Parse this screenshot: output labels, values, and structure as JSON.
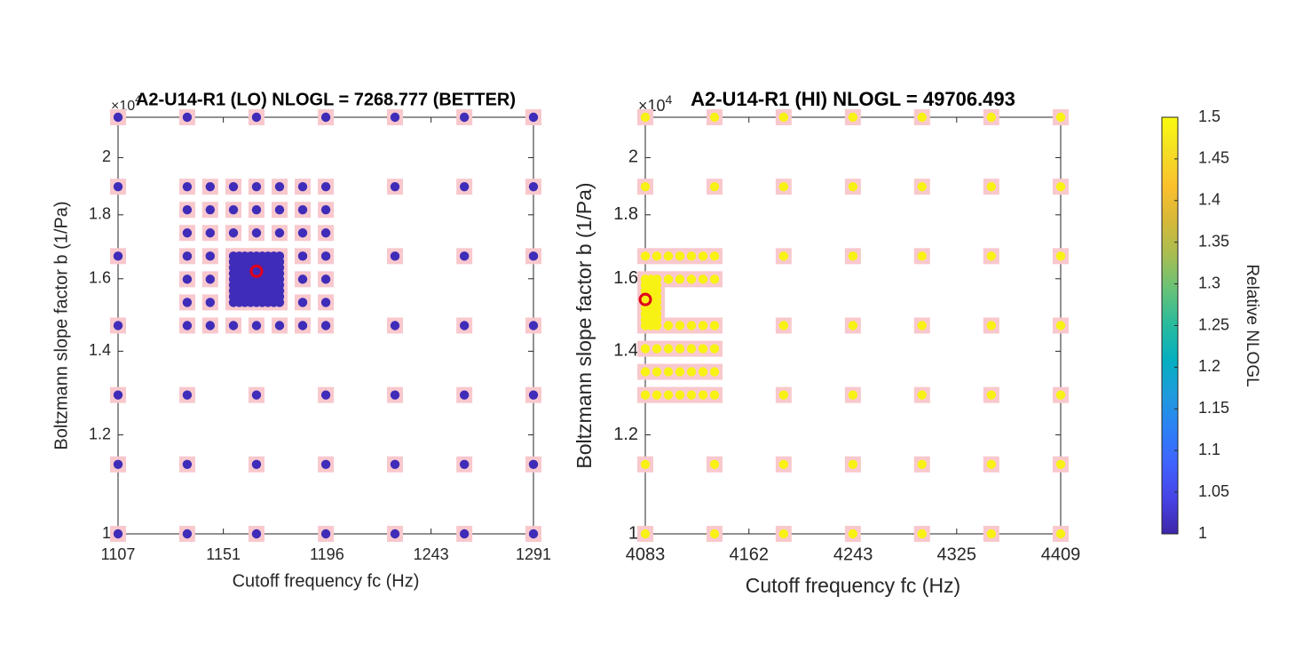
{
  "chart_data": [
    {
      "type": "scatter",
      "title": "A2-U14-R1 (LO) NLOGL = 7268.777 (BETTER)",
      "x_label": "Cutoff frequency fc (Hz)",
      "y_label": "Boltzmann slope factor b (1/Pa)",
      "y_multiplier": {
        "base": "×10",
        "exponent": "4"
      },
      "xscale": "log",
      "yscale": "log",
      "xlim": [
        1107,
        1291
      ],
      "ylim": [
        1,
        2.1544
      ],
      "xticks": [
        1107,
        1151,
        1196,
        1243,
        1291
      ],
      "yticks": [
        1,
        1.2,
        1.4,
        1.6,
        1.8,
        2
      ],
      "color": "#3f2cb8",
      "marker_bg": "#f8c8cd",
      "rows": [
        {
          "y": 2.1544,
          "x": [
            1107,
            1135.7,
            1165.2,
            1195.5,
            1226.5,
            1258.4,
            1291
          ]
        },
        {
          "y": 1.8957,
          "x": [
            1107,
            1135.7,
            1145.4,
            1155.3,
            1165.2,
            1175.2,
            1185.3,
            1195.5,
            1226.5,
            1258.4,
            1291
          ]
        },
        {
          "y": 1.8166,
          "x": [
            1135.7,
            1145.4,
            1155.3,
            1165.2,
            1175.2,
            1185.3,
            1195.5
          ]
        },
        {
          "y": 1.7408,
          "x": [
            1135.7,
            1145.4,
            1155.3,
            1165.2,
            1175.2,
            1185.3,
            1195.5
          ]
        },
        {
          "y": 1.6681,
          "x": [
            1107,
            1135.7,
            1145.4,
            1155.3,
            1157.8,
            1160.2,
            1162.7,
            1165.2,
            1167.7,
            1170.2,
            1172.7,
            1175.2,
            1185.3,
            1195.5,
            1226.5,
            1258.4,
            1291
          ]
        },
        {
          "y": 1.6504,
          "x": [
            1155.3,
            1157.8,
            1160.2,
            1162.7,
            1165.2,
            1167.7,
            1170.2,
            1172.7,
            1175.2
          ]
        },
        {
          "y": 1.6329,
          "x": [
            1155.3,
            1157.8,
            1160.2,
            1162.7,
            1165.2,
            1167.7,
            1170.2,
            1172.7,
            1175.2
          ]
        },
        {
          "y": 1.6156,
          "x": [
            1155.3,
            1157.8,
            1160.2,
            1162.7,
            1165.2,
            1167.7,
            1170.2,
            1172.7,
            1175.2
          ]
        },
        {
          "y": 1.5985,
          "x": [
            1135.7,
            1145.4,
            1155.3,
            1157.8,
            1160.2,
            1162.7,
            1165.2,
            1167.7,
            1170.2,
            1172.7,
            1175.2,
            1185.3,
            1195.5
          ]
        },
        {
          "y": 1.5816,
          "x": [
            1155.3,
            1157.8,
            1160.2,
            1162.7,
            1165.2,
            1167.7,
            1170.2,
            1172.7,
            1175.2
          ]
        },
        {
          "y": 1.5648,
          "x": [
            1155.3,
            1157.8,
            1160.2,
            1162.7,
            1165.2,
            1167.7,
            1170.2,
            1172.7,
            1175.2
          ]
        },
        {
          "y": 1.5482,
          "x": [
            1155.3,
            1157.8,
            1160.2,
            1162.7,
            1165.2,
            1167.7,
            1170.2,
            1172.7,
            1175.2
          ]
        },
        {
          "y": 1.5318,
          "x": [
            1135.7,
            1145.4,
            1155.3,
            1157.8,
            1160.2,
            1162.7,
            1165.2,
            1167.7,
            1170.2,
            1172.7,
            1175.2,
            1185.3,
            1195.5
          ]
        },
        {
          "y": 1.4678,
          "x": [
            1107,
            1135.7,
            1145.4,
            1155.3,
            1165.2,
            1175.2,
            1185.3,
            1195.5,
            1226.5,
            1258.4,
            1291
          ]
        },
        {
          "y": 1.2915,
          "x": [
            1107,
            1135.7,
            1165.2,
            1195.5,
            1226.5,
            1258.4,
            1291
          ]
        },
        {
          "y": 1.1365,
          "x": [
            1107,
            1135.7,
            1165.2,
            1195.5,
            1226.5,
            1258.4,
            1291
          ]
        },
        {
          "y": 1,
          "x": [
            1107,
            1135.7,
            1165.2,
            1195.5,
            1226.5,
            1258.4,
            1291
          ]
        }
      ],
      "best": {
        "x": 1165.2,
        "y": 1.6223,
        "color": "#e0001b"
      }
    },
    {
      "type": "scatter",
      "title": "A2-U14-R1 (HI) NLOGL = 49706.493",
      "x_label": "Cutoff frequency fc (Hz)",
      "y_label": "Boltzmann slope factor b (1/Pa)",
      "y_multiplier": {
        "base": "×10",
        "exponent": "4"
      },
      "xscale": "log",
      "yscale": "log",
      "xlim": [
        4083,
        4409
      ],
      "ylim": [
        1,
        2.1544
      ],
      "xticks": [
        4083,
        4162,
        4243,
        4325,
        4409
      ],
      "yticks": [
        1,
        1.2,
        1.4,
        1.6,
        1.8,
        2
      ],
      "color": "#f8f214",
      "marker_bg": "#f8c8cd",
      "rows": [
        {
          "y": 2.1544,
          "x": [
            4083,
            4135.6,
            4188.8,
            4242.8,
            4297.4,
            4352.8,
            4409
          ]
        },
        {
          "y": 1.8957,
          "x": [
            4083,
            4135.6,
            4188.8,
            4242.8,
            4297.4,
            4352.8,
            4409
          ]
        },
        {
          "y": 1.6681,
          "x": [
            4083,
            4091.7,
            4100.5,
            4109.2,
            4118,
            4126.8,
            4135.6,
            4188.8,
            4242.8,
            4297.4,
            4352.8,
            4409
          ]
        },
        {
          "y": 1.5985,
          "x": [
            4083,
            4087.4,
            4091.7,
            4100.5,
            4109.2,
            4118,
            4126.8,
            4135.6
          ]
        },
        {
          "y": 1.5816,
          "x": [
            4083,
            4087.4,
            4091.7
          ]
        },
        {
          "y": 1.5648,
          "x": [
            4083,
            4087.4,
            4091.7
          ]
        },
        {
          "y": 1.5482,
          "x": [
            4083,
            4087.4,
            4091.7
          ]
        },
        {
          "y": 1.5318,
          "x": [
            4083,
            4087.4,
            4091.7
          ]
        },
        {
          "y": 1.5155,
          "x": [
            4083,
            4087.4,
            4091.7
          ]
        },
        {
          "y": 1.4994,
          "x": [
            4083,
            4087.4,
            4091.7
          ]
        },
        {
          "y": 1.4835,
          "x": [
            4083,
            4087.4,
            4091.7
          ]
        },
        {
          "y": 1.4678,
          "x": [
            4083,
            4087.4,
            4091.7,
            4100.5,
            4109.2,
            4118,
            4126.8,
            4135.6,
            4188.8,
            4242.8,
            4297.4,
            4352.8,
            4409
          ]
        },
        {
          "y": 1.4065,
          "x": [
            4083,
            4091.7,
            4100.5,
            4109.2,
            4118,
            4126.8,
            4135.6
          ]
        },
        {
          "y": 1.3478,
          "x": [
            4083,
            4091.7,
            4100.5,
            4109.2,
            4118,
            4126.8,
            4135.6
          ]
        },
        {
          "y": 1.2915,
          "x": [
            4083,
            4091.7,
            4100.5,
            4109.2,
            4118,
            4126.8,
            4135.6,
            4188.8,
            4242.8,
            4297.4,
            4352.8,
            4409
          ]
        },
        {
          "y": 1.1365,
          "x": [
            4083,
            4135.6,
            4188.8,
            4242.8,
            4297.4,
            4352.8,
            4409
          ]
        },
        {
          "y": 1,
          "x": [
            4083,
            4135.6,
            4188.8,
            4242.8,
            4297.4,
            4352.8,
            4409
          ]
        }
      ],
      "best": {
        "x": 4083,
        "y": 1.54,
        "color": "#e0001b"
      }
    }
  ],
  "colorbar": {
    "label": "Relative NLOGL",
    "lim": [
      1,
      1.5
    ],
    "ticks": [
      1,
      1.05,
      1.1,
      1.15,
      1.2,
      1.25,
      1.3,
      1.35,
      1.4,
      1.45,
      1.5
    ],
    "colormap": [
      "#3e26a8",
      "#4743e6",
      "#4062fd",
      "#2c80f6",
      "#1f9bdd",
      "#05afc0",
      "#27bb9e",
      "#64c27a",
      "#a5be53",
      "#d6b839",
      "#fbc02d",
      "#f5dd25",
      "#f9fb0e"
    ]
  }
}
